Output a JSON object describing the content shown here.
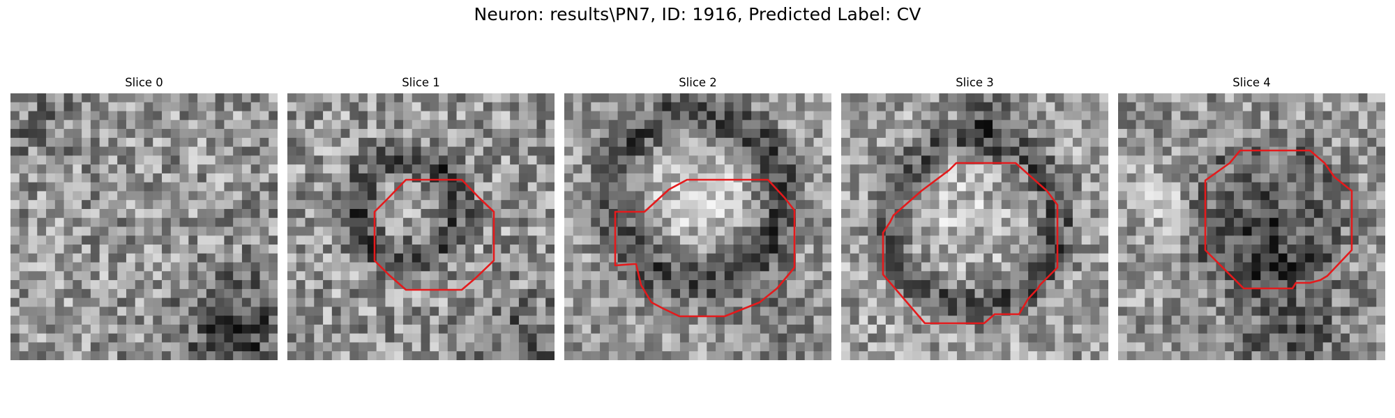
{
  "figure": {
    "title": "Neuron: results\\PN7, ID: 1916, Predicted Label: CV",
    "contour_color": "#e41a1c"
  },
  "panels": [
    {
      "title": "Slice 0",
      "has_contour": false
    },
    {
      "title": "Slice 1",
      "has_contour": true
    },
    {
      "title": "Slice 2",
      "has_contour": true
    },
    {
      "title": "Slice 3",
      "has_contour": true
    },
    {
      "title": "Slice 4",
      "has_contour": true
    }
  ]
}
